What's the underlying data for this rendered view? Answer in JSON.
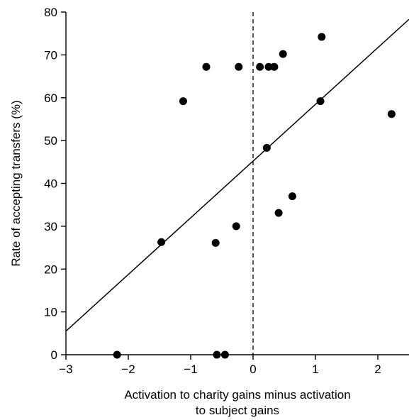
{
  "chart_data": {
    "type": "scatter",
    "xlabel_lines": [
      "Activation to charity gains minus activation",
      "to subject gains"
    ],
    "ylabel": "Rate of accepting transfers (%)",
    "xlim": [
      -3,
      2.5
    ],
    "ylim": [
      0,
      80
    ],
    "xticks": [
      -3,
      -2,
      -1,
      0,
      1,
      2
    ],
    "xtick_labels": [
      "−3",
      "−2",
      "−1",
      "0",
      "1",
      "2"
    ],
    "yticks": [
      0,
      10,
      20,
      30,
      40,
      50,
      60,
      70,
      80
    ],
    "ytick_labels": [
      "0",
      "10",
      "20",
      "30",
      "40",
      "50",
      "60",
      "70",
      "80"
    ],
    "grid": false,
    "reference_line": {
      "x": 0,
      "style": "dashed"
    },
    "regression_line": {
      "x1": -3,
      "y1": 5.5,
      "x2": 2.5,
      "y2": 78.3
    },
    "points": [
      {
        "x": -2.18,
        "y": 0
      },
      {
        "x": -0.58,
        "y": 0
      },
      {
        "x": -0.45,
        "y": 0
      },
      {
        "x": -1.47,
        "y": 26.3
      },
      {
        "x": -0.6,
        "y": 26.1
      },
      {
        "x": -0.27,
        "y": 30.0
      },
      {
        "x": 0.41,
        "y": 33.1
      },
      {
        "x": 0.63,
        "y": 37.0
      },
      {
        "x": 0.22,
        "y": 48.3
      },
      {
        "x": -1.12,
        "y": 59.2
      },
      {
        "x": 1.08,
        "y": 59.2
      },
      {
        "x": 2.22,
        "y": 56.2
      },
      {
        "x": -0.75,
        "y": 67.2
      },
      {
        "x": -0.23,
        "y": 67.2
      },
      {
        "x": 0.11,
        "y": 67.2
      },
      {
        "x": 0.25,
        "y": 67.2
      },
      {
        "x": 0.34,
        "y": 67.2
      },
      {
        "x": 0.48,
        "y": 70.2
      },
      {
        "x": 1.1,
        "y": 74.2
      }
    ]
  }
}
